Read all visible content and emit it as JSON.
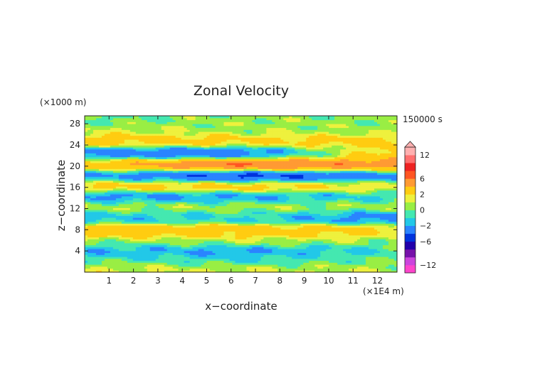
{
  "chart_data": {
    "type": "heatmap",
    "title": "Zonal Velocity",
    "xlabel": "x−coordinate",
    "ylabel": "z−coordinate",
    "x_unit": "(×1E4 m)",
    "y_unit": "(×1000 m)",
    "time_label": "150000 s",
    "xlim": [
      0,
      12.8
    ],
    "ylim": [
      0,
      29.5
    ],
    "x_ticks": [
      1,
      2,
      3,
      4,
      5,
      6,
      7,
      8,
      9,
      10,
      11,
      12
    ],
    "y_ticks": [
      4,
      8,
      12,
      16,
      20,
      24,
      28
    ],
    "x_tick_labels": [
      "1",
      "2",
      "3",
      "4",
      "5",
      "6",
      "7",
      "8",
      "9",
      "10",
      "11",
      "12"
    ],
    "y_tick_labels": [
      "4",
      "8",
      "12",
      "16",
      "20",
      "24",
      "28"
    ],
    "colorbar": {
      "levels": [
        -14,
        -12,
        -10,
        -8,
        -6,
        -4,
        -2,
        -1,
        0,
        1,
        2,
        4,
        6,
        8,
        10,
        12,
        14
      ],
      "colors": [
        "#ff44cc",
        "#cc44dd",
        "#7711aa",
        "#2200aa",
        "#0033dd",
        "#2a84ff",
        "#22c8e8",
        "#44e8b0",
        "#99ee44",
        "#eef13d",
        "#ffcc11",
        "#ff9a33",
        "#ff5522",
        "#ee2222",
        "#ff7070",
        "#ffb0b0"
      ],
      "tick_values": [
        12,
        6,
        2,
        0,
        -2,
        -6,
        -12
      ],
      "tick_labels": [
        "12",
        "6",
        "2",
        "0",
        "−2",
        "−6",
        "−12"
      ],
      "extend": "max"
    },
    "z_bands": [
      {
        "z": 0.5,
        "amps": [
          1.2,
          1.0,
          0.8
        ]
      },
      {
        "z": 2.5,
        "amps": [
          -0.5,
          -1.0,
          0.0
        ]
      },
      {
        "z": 4.2,
        "amps": [
          -2.0,
          -2.5,
          -1.0
        ]
      },
      {
        "z": 5.8,
        "amps": [
          0.5,
          1.0,
          0.5
        ]
      },
      {
        "z": 7.7,
        "amps": [
          3.2,
          3.0,
          2.2
        ]
      },
      {
        "z": 10.5,
        "amps": [
          -1.6,
          -1.0,
          -2.8
        ]
      },
      {
        "z": 12.5,
        "amps": [
          1.2,
          0.8,
          1.0
        ]
      },
      {
        "z": 14.2,
        "amps": [
          -3.0,
          -2.5,
          -1.2
        ]
      },
      {
        "z": 16.3,
        "amps": [
          2.8,
          3.2,
          2.0
        ]
      },
      {
        "z": 18.2,
        "amps": [
          -2.2,
          -5.5,
          -3.2
        ]
      },
      {
        "z": 20.3,
        "amps": [
          3.2,
          6.8,
          5.2
        ]
      },
      {
        "z": 22.5,
        "amps": [
          -3.0,
          -3.6,
          3.0
        ]
      },
      {
        "z": 24.8,
        "amps": [
          3.0,
          2.5,
          2.5
        ]
      },
      {
        "z": 27.0,
        "amps": [
          1.0,
          0.5,
          0.5
        ]
      },
      {
        "z": 29.0,
        "amps": [
          -0.3,
          0.5,
          0.2
        ]
      }
    ]
  }
}
